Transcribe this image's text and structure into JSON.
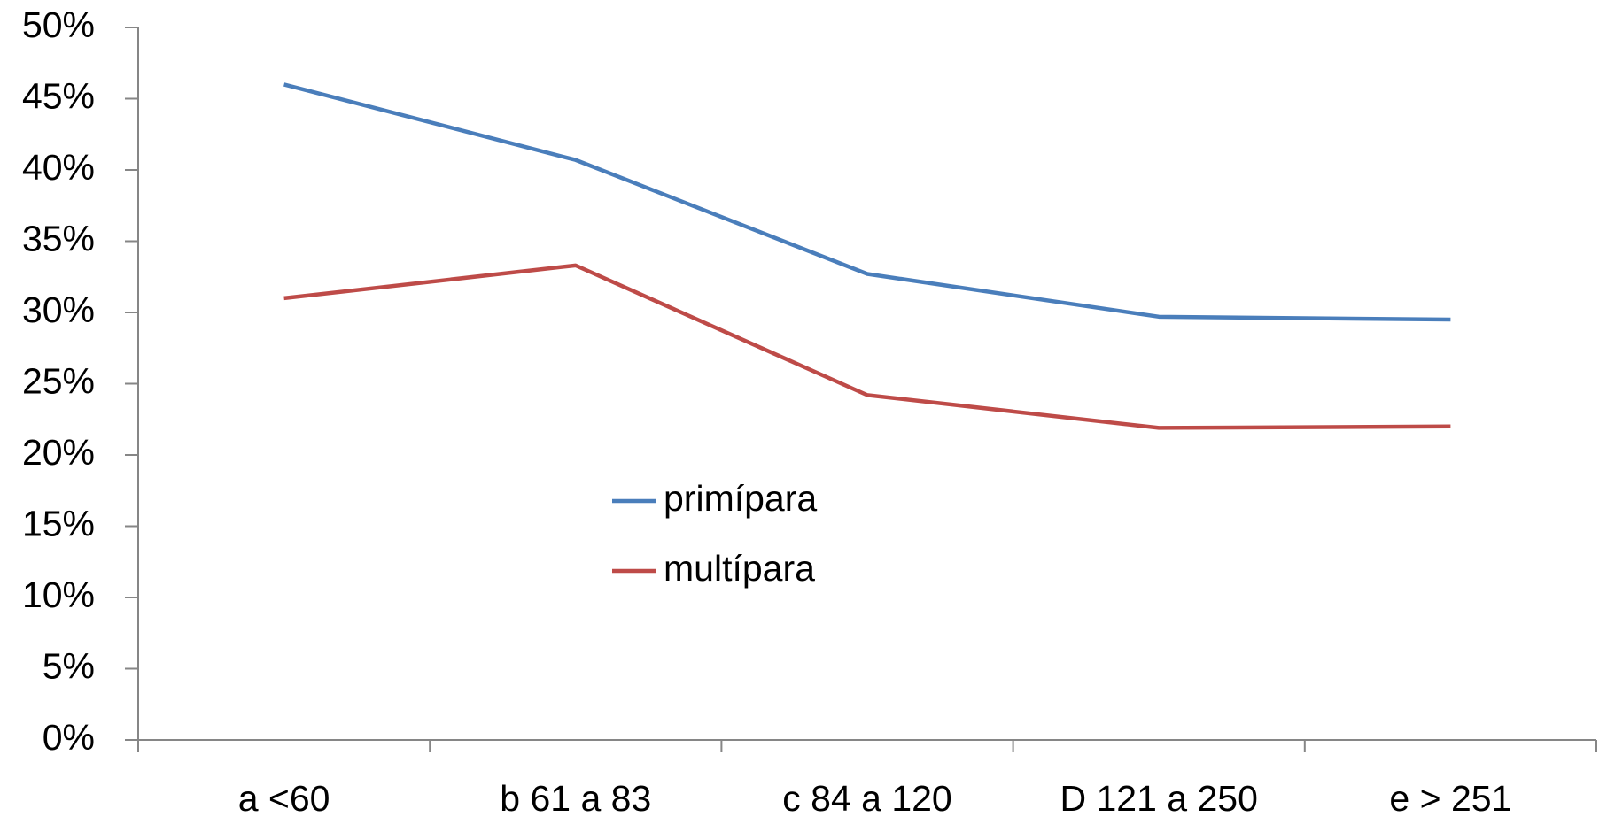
{
  "chart_data": {
    "type": "line",
    "categories": [
      "a <60",
      "b 61 a 83",
      "c 84 a 120",
      "D 121 a 250",
      "e > 251"
    ],
    "series": [
      {
        "name": "primípara",
        "color": "#4a7ebb",
        "values": [
          46.0,
          40.7,
          32.7,
          29.7,
          29.5
        ]
      },
      {
        "name": "multípara",
        "color": "#be4b48",
        "values": [
          31.0,
          33.3,
          24.2,
          21.9,
          22.0
        ]
      }
    ],
    "ylim": [
      0,
      50
    ],
    "yticks": [
      {
        "value": 0,
        "label": "0%"
      },
      {
        "value": 5,
        "label": "5%"
      },
      {
        "value": 10,
        "label": "10%"
      },
      {
        "value": 15,
        "label": "15%"
      },
      {
        "value": 20,
        "label": "20%"
      },
      {
        "value": 25,
        "label": "25%"
      },
      {
        "value": 30,
        "label": "30%"
      },
      {
        "value": 35,
        "label": "35%"
      },
      {
        "value": 40,
        "label": "40%"
      },
      {
        "value": 45,
        "label": "45%"
      },
      {
        "value": 50,
        "label": "50%"
      }
    ],
    "grid": false,
    "legend": "center"
  }
}
